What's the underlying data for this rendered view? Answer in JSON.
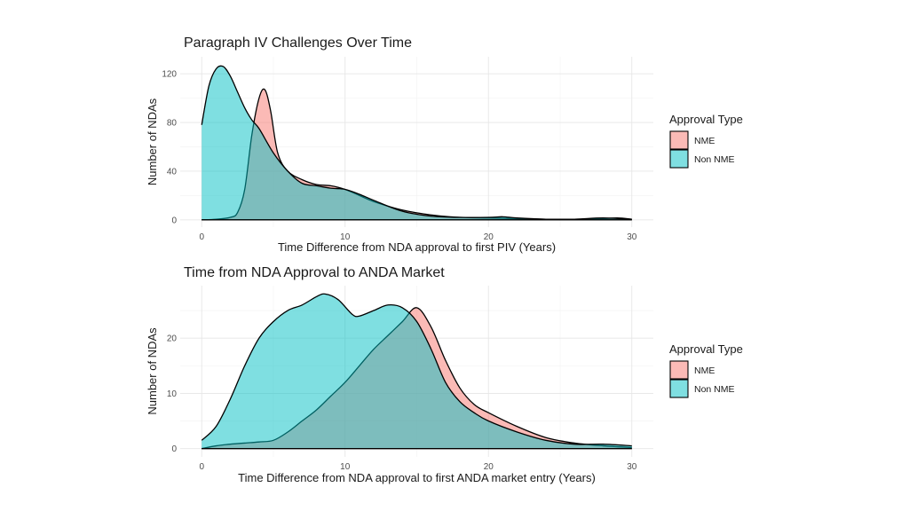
{
  "chart_data": [
    {
      "type": "area",
      "title": "Paragraph IV Challenges Over Time",
      "xlabel": "Time Difference from NDA approval to first PIV (Years)",
      "ylabel": "Number of NDAs",
      "xlim": [
        -1.5,
        31.5
      ],
      "ylim": [
        -6,
        134
      ],
      "xticks": [
        0,
        10,
        20,
        30
      ],
      "yticks": [
        0,
        40,
        80,
        120
      ],
      "grid": true,
      "legend": {
        "title": "Approval Type",
        "position": "right"
      },
      "series": [
        {
          "name": "NME",
          "color": "#F8766D",
          "x": [
            0,
            1,
            2,
            2.5,
            3,
            3.5,
            4,
            4.4,
            4.8,
            5.3,
            6,
            7,
            8,
            9,
            10,
            11,
            12,
            14,
            16,
            18,
            20,
            22,
            24,
            26,
            28,
            29,
            30
          ],
          "y": [
            0,
            0.5,
            2,
            6,
            25,
            70,
            100,
            107,
            90,
            55,
            40,
            33,
            29,
            28,
            25,
            20,
            15,
            8,
            4,
            2,
            1.5,
            1,
            0.5,
            0.5,
            1,
            1.5,
            0.5
          ]
        },
        {
          "name": "Non NME",
          "color": "#00BFC4",
          "x": [
            0,
            0.5,
            1,
            1.5,
            2,
            2.5,
            3,
            3.5,
            4,
            5,
            6,
            7,
            8,
            9,
            10,
            11,
            12,
            14,
            16,
            18,
            20,
            21,
            22,
            24,
            26,
            28,
            30
          ],
          "y": [
            78,
            110,
            124,
            126,
            118,
            105,
            92,
            82,
            75,
            55,
            40,
            30,
            28,
            26,
            25,
            21,
            16,
            7,
            3,
            2,
            2,
            2.5,
            1.5,
            0.5,
            0.5,
            1.5,
            0.5
          ]
        }
      ]
    },
    {
      "type": "area",
      "title": "Time from NDA Approval to ANDA Market",
      "xlabel": "Time Difference from NDA approval to first ANDA market entry (Years)",
      "ylabel": "Number of NDAs",
      "xlim": [
        -1.5,
        31.5
      ],
      "ylim": [
        -1.5,
        29.5
      ],
      "xticks": [
        0,
        10,
        20,
        30
      ],
      "yticks": [
        0,
        10,
        20
      ],
      "grid": true,
      "legend": {
        "title": "Approval Type",
        "position": "right"
      },
      "series": [
        {
          "name": "NME",
          "color": "#F8766D",
          "x": [
            0,
            1,
            2,
            3,
            4,
            5,
            6,
            7,
            8,
            9,
            10,
            11,
            12,
            13,
            14,
            15,
            16,
            17,
            18,
            19,
            20,
            22,
            24,
            26,
            28,
            30
          ],
          "y": [
            0,
            0.5,
            0.8,
            1,
            1.2,
            1.5,
            3,
            5,
            7,
            9.5,
            12,
            15,
            18,
            20.5,
            23,
            25.5,
            22,
            16,
            11,
            8,
            6.5,
            4,
            2,
            1,
            0.5,
            0.2
          ]
        },
        {
          "name": "Non NME",
          "color": "#00BFC4",
          "x": [
            0,
            1,
            2,
            3,
            4,
            5,
            6,
            7,
            8,
            8.6,
            9.5,
            10.5,
            11,
            12,
            13,
            14,
            15,
            16,
            17,
            18,
            19,
            20,
            22,
            24,
            26,
            28,
            30
          ],
          "y": [
            1.5,
            4,
            9,
            15,
            20,
            23,
            25,
            26,
            27.5,
            28,
            27,
            24.3,
            24,
            25,
            26,
            25.5,
            23,
            18,
            12,
            8.5,
            6.5,
            5,
            3,
            1.5,
            0.8,
            0.8,
            0.5
          ]
        }
      ]
    }
  ]
}
